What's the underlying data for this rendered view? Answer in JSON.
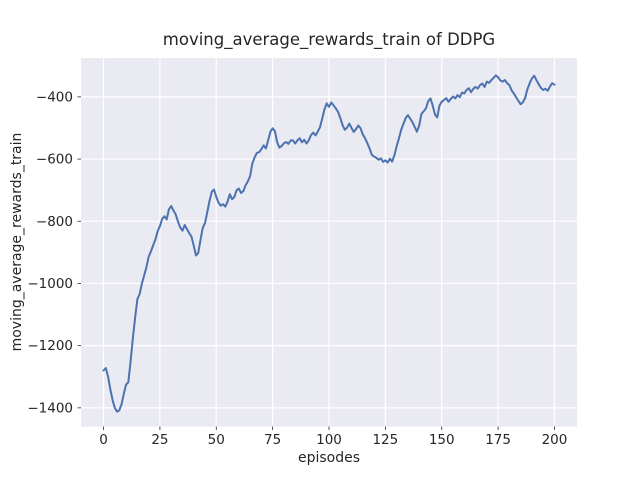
{
  "figure": {
    "background": "#ffffff",
    "axes_background": "#eaeaf2",
    "grid_color": "#ffffff",
    "text_color": "#262626"
  },
  "chart_data": {
    "type": "line",
    "title": "moving_average_rewards_train of DDPG",
    "xlabel": "episodes",
    "ylabel": "moving_average_rewards_train",
    "style": "seaborn-darkgrid",
    "grid": true,
    "legend": "none",
    "xlim": [
      -10,
      210
    ],
    "ylim": [
      -1460,
      -275
    ],
    "xticks": [
      0,
      25,
      50,
      75,
      100,
      125,
      150,
      175,
      200
    ],
    "xticklabels": [
      "0",
      "25",
      "50",
      "75",
      "100",
      "125",
      "150",
      "175",
      "200"
    ],
    "yticks": [
      -400,
      -600,
      -800,
      -1000,
      -1200,
      -1400
    ],
    "yticklabels": [
      "−400",
      "−600",
      "−800",
      "−1000",
      "−1200",
      "−1400"
    ],
    "series": [
      {
        "name": "moving_average_rewards_train",
        "color": "#4c72b0",
        "line_width": 2,
        "x_start": 0,
        "x_step": 1,
        "y": [
          -1280,
          -1272,
          -1300,
          -1340,
          -1375,
          -1400,
          -1412,
          -1408,
          -1388,
          -1355,
          -1325,
          -1318,
          -1250,
          -1175,
          -1110,
          -1050,
          -1035,
          -1000,
          -975,
          -948,
          -915,
          -897,
          -878,
          -858,
          -832,
          -816,
          -792,
          -784,
          -794,
          -762,
          -751,
          -765,
          -778,
          -800,
          -820,
          -830,
          -812,
          -826,
          -838,
          -850,
          -878,
          -910,
          -902,
          -860,
          -822,
          -806,
          -770,
          -735,
          -705,
          -698,
          -722,
          -740,
          -750,
          -745,
          -753,
          -737,
          -713,
          -729,
          -722,
          -700,
          -695,
          -709,
          -703,
          -684,
          -672,
          -655,
          -615,
          -595,
          -580,
          -578,
          -568,
          -556,
          -566,
          -540,
          -512,
          -501,
          -510,
          -545,
          -563,
          -558,
          -549,
          -545,
          -551,
          -540,
          -540,
          -550,
          -540,
          -533,
          -546,
          -538,
          -550,
          -540,
          -523,
          -515,
          -524,
          -512,
          -498,
          -470,
          -440,
          -421,
          -432,
          -418,
          -427,
          -437,
          -448,
          -468,
          -490,
          -506,
          -499,
          -486,
          -500,
          -513,
          -503,
          -492,
          -501,
          -521,
          -533,
          -549,
          -566,
          -586,
          -592,
          -596,
          -602,
          -598,
          -609,
          -604,
          -611,
          -599,
          -608,
          -588,
          -559,
          -534,
          -507,
          -487,
          -468,
          -459,
          -470,
          -481,
          -497,
          -512,
          -492,
          -455,
          -446,
          -437,
          -414,
          -405,
          -428,
          -457,
          -466,
          -428,
          -416,
          -410,
          -404,
          -416,
          -407,
          -399,
          -405,
          -394,
          -401,
          -386,
          -389,
          -378,
          -372,
          -385,
          -374,
          -368,
          -373,
          -362,
          -357,
          -368,
          -351,
          -355,
          -346,
          -339,
          -331,
          -337,
          -347,
          -351,
          -346,
          -356,
          -362,
          -379,
          -389,
          -401,
          -413,
          -424,
          -417,
          -404,
          -375,
          -356,
          -341,
          -332,
          -346,
          -359,
          -371,
          -378,
          -374,
          -380,
          -367,
          -356,
          -361
        ]
      }
    ]
  }
}
